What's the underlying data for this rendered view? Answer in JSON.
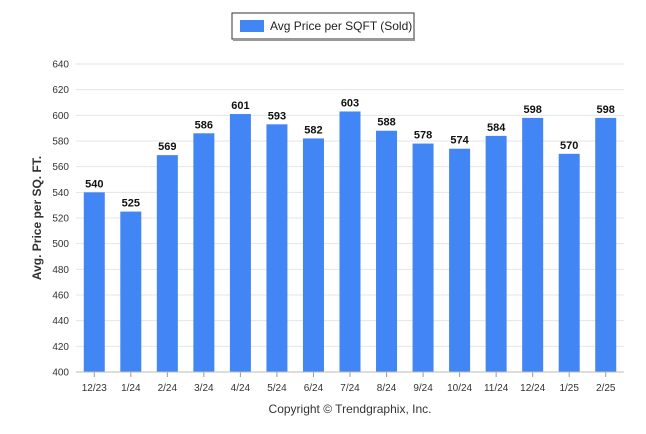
{
  "chart_data": {
    "type": "bar",
    "categories": [
      "12/23",
      "1/24",
      "2/24",
      "3/24",
      "4/24",
      "5/24",
      "6/24",
      "7/24",
      "8/24",
      "9/24",
      "10/24",
      "11/24",
      "12/24",
      "1/25",
      "2/25"
    ],
    "series": [
      {
        "name": "Avg Price per SQFT (Sold)",
        "values": [
          540,
          525,
          569,
          586,
          601,
          593,
          582,
          603,
          588,
          578,
          574,
          584,
          598,
          570,
          598
        ],
        "color": "#4285f4"
      }
    ],
    "ylabel": "Avg. Price per SQ. FT.",
    "ylim": [
      400,
      640
    ],
    "yticks": [
      400,
      420,
      440,
      460,
      480,
      500,
      520,
      540,
      560,
      580,
      600,
      620,
      640
    ],
    "grid": true,
    "legend_position": "top-center",
    "data_labels": true
  },
  "footer": {
    "copyright": "Copyright © Trendgraphix, Inc."
  }
}
